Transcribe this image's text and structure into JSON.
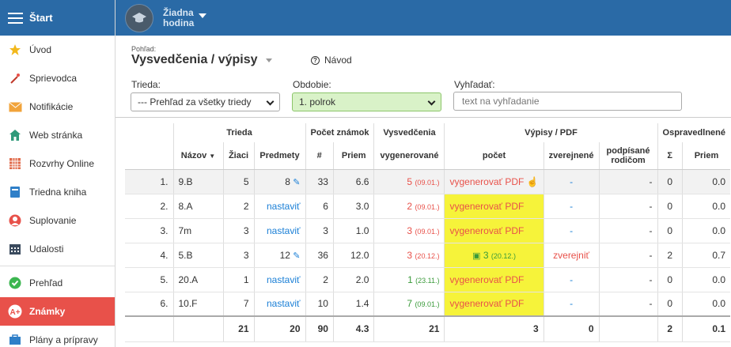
{
  "sidebar": {
    "title": "Štart",
    "items": [
      {
        "label": "Úvod",
        "icon": "star-icon"
      },
      {
        "label": "Sprievodca",
        "icon": "wand-icon"
      },
      {
        "label": "Notifikácie",
        "icon": "envelope-icon"
      },
      {
        "label": "Web stránka",
        "icon": "house-icon"
      },
      {
        "label": "Rozvrhy Online",
        "icon": "calendar-grid-icon"
      },
      {
        "label": "Triedna kniha",
        "icon": "book-icon"
      },
      {
        "label": "Suplovanie",
        "icon": "person-icon"
      },
      {
        "label": "Udalosti",
        "icon": "calendar-icon"
      }
    ],
    "items2": [
      {
        "label": "Prehľad",
        "icon": "check-icon"
      },
      {
        "label": "Známky",
        "icon": "grade-icon"
      },
      {
        "label": "Plány a prípravy",
        "icon": "briefcase-icon"
      }
    ]
  },
  "topbar": {
    "lesson_line1": "Žiadna",
    "lesson_line2": "hodina"
  },
  "header": {
    "view_label": "Pohľad:",
    "view_title": "Vysvedčenia / výpisy",
    "help": "Návod",
    "class_label": "Trieda:",
    "class_value": "--- Prehľad za všetky triedy",
    "period_label": "Obdobie:",
    "period_value": "1. polrok",
    "search_label": "Vyhľadať:",
    "search_placeholder": "text na vyhľadanie"
  },
  "table": {
    "groups": {
      "trieda": "Trieda",
      "pocet_znamok": "Počet známok",
      "vysvedcenia": "Vysvedčenia",
      "vypisy": "Výpisy / PDF",
      "ospravedlnene": "Ospravedlnené"
    },
    "cols": {
      "nazov": "Názov",
      "ziaci": "Žiaci",
      "predmety": "Predmety",
      "count": "#",
      "priem": "Priem",
      "vygenerovane": "vygenerované",
      "pocet": "počet",
      "zverejnene": "zverejnené",
      "podpisane": "podpísané",
      "podpisane2": "rodičom",
      "sigma": "Σ",
      "priem2": "Priem"
    },
    "rows": [
      {
        "idx": "1.",
        "name": "9.B",
        "students": "5",
        "subjects": "8",
        "grades": "33",
        "avg": "6.6",
        "gen": "5",
        "gen_date": "(09.01.)",
        "pdf": "vygenerovať PDF",
        "published": "-",
        "signed": "-",
        "sum": "0",
        "avg2": "0.0"
      },
      {
        "idx": "2.",
        "name": "8.A",
        "students": "2",
        "subjects": "nastaviť",
        "grades": "6",
        "avg": "3.0",
        "gen": "2",
        "gen_date": "(09.01.)",
        "pdf": "vygenerovať PDF",
        "published": "-",
        "signed": "-",
        "sum": "0",
        "avg2": "0.0"
      },
      {
        "idx": "3.",
        "name": "7m",
        "students": "3",
        "subjects": "nastaviť",
        "grades": "3",
        "avg": "1.0",
        "gen": "3",
        "gen_date": "(09.01.)",
        "pdf": "vygenerovať PDF",
        "published": "-",
        "signed": "-",
        "sum": "0",
        "avg2": "0.0"
      },
      {
        "idx": "4.",
        "name": "5.B",
        "students": "3",
        "subjects": "12",
        "grades": "36",
        "avg": "12.0",
        "gen": "3",
        "gen_date": "(20.12.)",
        "pdf": "3",
        "pdf_date": "(20.12.)",
        "published": "zverejniť",
        "signed": "-",
        "sum": "2",
        "avg2": "0.7"
      },
      {
        "idx": "5.",
        "name": "20.A",
        "students": "1",
        "subjects": "nastaviť",
        "grades": "2",
        "avg": "2.0",
        "gen": "1",
        "gen_date": "(23.11.)",
        "pdf": "vygenerovať PDF",
        "published": "-",
        "signed": "-",
        "sum": "0",
        "avg2": "0.0"
      },
      {
        "idx": "6.",
        "name": "10.F",
        "students": "7",
        "subjects": "nastaviť",
        "grades": "10",
        "avg": "1.4",
        "gen": "7",
        "gen_date": "(09.01.)",
        "pdf": "vygenerovať PDF",
        "published": "-",
        "signed": "-",
        "sum": "0",
        "avg2": "0.0"
      }
    ],
    "totals": {
      "students": "21",
      "subjects": "20",
      "grades": "90",
      "avg": "4.3",
      "gen": "21",
      "pdf": "3",
      "published": "0",
      "sum": "2",
      "avg2": "0.1"
    }
  },
  "colors": {
    "topbar": "#2a6aa6",
    "active": "#e8514a",
    "highlight": "#f6f33a",
    "link": "#1a7fd6"
  }
}
